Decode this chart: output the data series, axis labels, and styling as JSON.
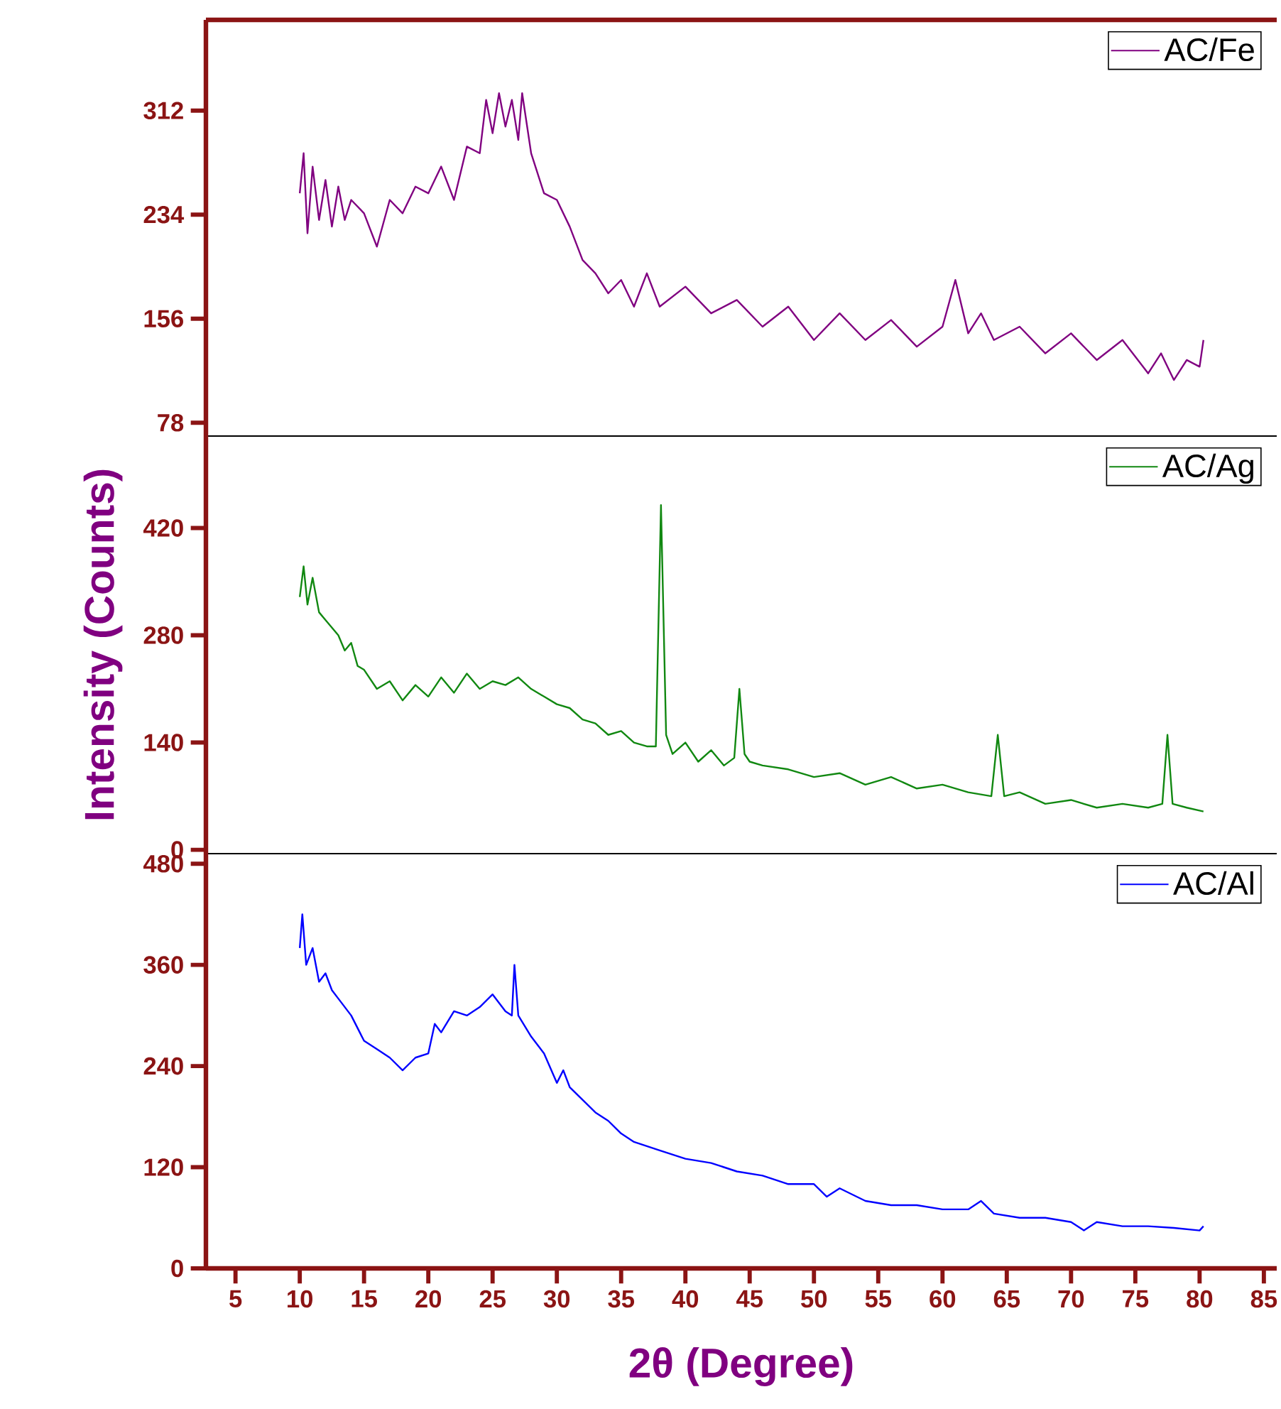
{
  "chart_data": [
    {
      "type": "line",
      "xlim": [
        2.7,
        86
      ],
      "xticks": [
        5,
        10,
        15,
        20,
        25,
        30,
        35,
        40,
        45,
        50,
        55,
        60,
        65,
        70,
        75,
        80,
        85
      ],
      "ylim": [
        68,
        380
      ],
      "yticks": [
        78,
        156,
        234,
        312
      ],
      "tick_labels": "y",
      "legend": "top right",
      "series": [
        {
          "name": "AC/Fe",
          "color": "#800080",
          "x": [
            10,
            10.3,
            10.6,
            11,
            11.5,
            12,
            12.5,
            13,
            13.5,
            14,
            15,
            16,
            17,
            18,
            19,
            20,
            21,
            22,
            23,
            24,
            24.5,
            25,
            25.5,
            26,
            26.5,
            27,
            27.3,
            28,
            29,
            30,
            31,
            32,
            33,
            34,
            35,
            36,
            37,
            38,
            40,
            42,
            44,
            46,
            48,
            50,
            52,
            54,
            56,
            58,
            60,
            61,
            62,
            63,
            64,
            66,
            68,
            70,
            72,
            74,
            76,
            77,
            78,
            79,
            80,
            80.3
          ],
          "values": [
            250,
            280,
            220,
            270,
            230,
            260,
            225,
            255,
            230,
            245,
            235,
            210,
            245,
            235,
            255,
            250,
            270,
            245,
            285,
            280,
            320,
            295,
            325,
            300,
            320,
            290,
            325,
            280,
            250,
            245,
            225,
            200,
            190,
            175,
            185,
            165,
            190,
            165,
            180,
            160,
            170,
            150,
            165,
            140,
            160,
            140,
            155,
            135,
            150,
            185,
            145,
            160,
            140,
            150,
            130,
            145,
            125,
            140,
            115,
            130,
            110,
            125,
            120,
            140
          ]
        }
      ]
    },
    {
      "type": "line",
      "ylabel": "Intensity (Counts)",
      "xlim": [
        2.7,
        86
      ],
      "xticks": [
        5,
        10,
        15,
        20,
        25,
        30,
        35,
        40,
        45,
        50,
        55,
        60,
        65,
        70,
        75,
        80,
        85
      ],
      "ylim": [
        -5,
        540
      ],
      "yticks": [
        0,
        140,
        280,
        420
      ],
      "tick_labels": "y",
      "legend": "top right",
      "series": [
        {
          "name": "AC/Ag",
          "color": "#118811",
          "x": [
            10,
            10.3,
            10.6,
            11,
            11.5,
            12,
            12.5,
            13,
            13.5,
            14,
            14.5,
            15,
            16,
            17,
            18,
            19,
            20,
            21,
            22,
            23,
            24,
            25,
            26,
            27,
            28,
            29,
            30,
            31,
            32,
            33,
            34,
            35,
            36,
            37,
            37.7,
            38.1,
            38.5,
            39,
            40,
            41,
            42,
            43,
            43.8,
            44.2,
            44.6,
            45,
            46,
            48,
            50,
            52,
            54,
            56,
            58,
            60,
            62,
            63.8,
            64.3,
            64.8,
            66,
            68,
            70,
            72,
            74,
            76,
            77.1,
            77.5,
            77.9,
            79,
            80.3
          ],
          "values": [
            330,
            370,
            320,
            355,
            310,
            300,
            290,
            280,
            260,
            270,
            240,
            235,
            210,
            220,
            195,
            215,
            200,
            225,
            205,
            230,
            210,
            220,
            215,
            225,
            210,
            200,
            190,
            185,
            170,
            165,
            150,
            155,
            140,
            135,
            135,
            450,
            150,
            125,
            140,
            115,
            130,
            110,
            120,
            210,
            125,
            115,
            110,
            105,
            95,
            100,
            85,
            95,
            80,
            85,
            75,
            70,
            150,
            70,
            75,
            60,
            65,
            55,
            60,
            55,
            60,
            150,
            60,
            55,
            50
          ]
        }
      ]
    },
    {
      "type": "line",
      "xlabel": "2θ (Degree)",
      "xlim": [
        2.7,
        86
      ],
      "xticks": [
        5,
        10,
        15,
        20,
        25,
        30,
        35,
        40,
        45,
        50,
        55,
        60,
        65,
        70,
        75,
        80,
        85
      ],
      "ylim": [
        0,
        492
      ],
      "yticks": [
        0,
        120,
        240,
        360,
        480
      ],
      "legend": "top right",
      "series": [
        {
          "name": "AC/Al",
          "color": "#0000ff",
          "x": [
            10,
            10.2,
            10.5,
            11,
            11.5,
            12,
            12.5,
            13,
            14,
            15,
            16,
            17,
            18,
            19,
            20,
            20.5,
            21,
            22,
            23,
            24,
            25,
            26,
            26.5,
            26.7,
            27,
            28,
            29,
            30,
            30.5,
            31,
            32,
            33,
            34,
            35,
            36,
            38,
            40,
            42,
            44,
            46,
            48,
            50,
            51,
            52,
            54,
            56,
            58,
            60,
            62,
            63,
            64,
            66,
            68,
            70,
            71,
            72,
            74,
            76,
            78,
            80,
            80.3
          ],
          "values": [
            380,
            420,
            360,
            380,
            340,
            350,
            330,
            320,
            300,
            270,
            260,
            250,
            235,
            250,
            255,
            290,
            280,
            305,
            300,
            310,
            325,
            305,
            300,
            360,
            300,
            275,
            255,
            220,
            235,
            215,
            200,
            185,
            175,
            160,
            150,
            140,
            130,
            125,
            115,
            110,
            100,
            100,
            85,
            95,
            80,
            75,
            75,
            70,
            70,
            80,
            65,
            60,
            60,
            55,
            45,
            55,
            50,
            50,
            48,
            45,
            50
          ]
        }
      ]
    }
  ]
}
